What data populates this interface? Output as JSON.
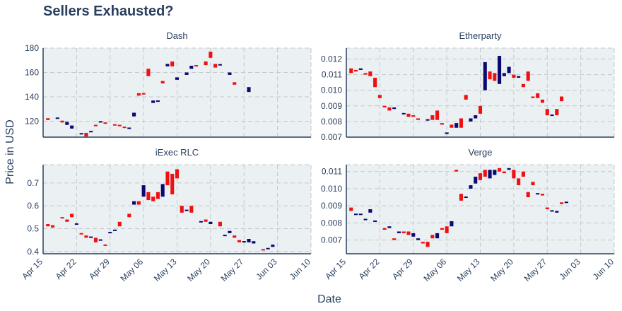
{
  "chart_data": {
    "type": "candlestick",
    "title": "Sellers Exhausted?",
    "xlabel": "Date",
    "ylabel": "Price in USD",
    "colors": {
      "up": "#0a0a73",
      "down": "#ee1111"
    },
    "xlim": [
      "2018-04-15",
      "2018-06-10"
    ],
    "xticks": [
      "2018-04-15",
      "2018-04-22",
      "2018-04-29",
      "2018-05-06",
      "2018-05-13",
      "2018-05-20",
      "2018-05-27",
      "2018-06-03",
      "2018-06-10"
    ],
    "xtick_labels": [
      "Apr 15",
      "Apr 22",
      "Apr 29",
      "May 06",
      "May 13",
      "May 20",
      "May 27",
      "Jun 03",
      "Jun 10"
    ],
    "start_date": "2018-04-16",
    "panels": [
      {
        "name": "Dash",
        "ylim": [
          107,
          180
        ],
        "yticks": [
          120,
          140,
          160,
          180
        ],
        "ytick_labels": [
          "120",
          "140",
          "160",
          "180"
        ],
        "closes_start": 121,
        "candles": [
          [
            122.5,
            121.0
          ],
          [
            null,
            null
          ],
          [
            122.0,
            123.0
          ],
          [
            120.5,
            119.0
          ],
          [
            117.0,
            119.5
          ],
          [
            114.0,
            116.5
          ],
          [
            null,
            null
          ],
          [
            109.5,
            110.0
          ],
          [
            110.5,
            107.5
          ],
          [
            111.0,
            112.0
          ],
          [
            117.0,
            116.0
          ],
          [
            119.0,
            120.0
          ],
          [
            119.0,
            118.0
          ],
          [
            null,
            null
          ],
          [
            117.5,
            116.5
          ],
          [
            117.0,
            116.0
          ],
          [
            115.5,
            114.5
          ],
          [
            114.0,
            114.5
          ],
          [
            124.0,
            127.0
          ],
          [
            143.0,
            141.0
          ],
          [
            143.0,
            142.0
          ],
          [
            163.0,
            157.0
          ],
          [
            135.0,
            137.0
          ],
          [
            136.0,
            137.0
          ],
          [
            153.0,
            151.0
          ],
          [
            165.0,
            167.0
          ],
          [
            169.0,
            165.0
          ],
          [
            154.0,
            156.0
          ],
          [
            null,
            null
          ],
          [
            158.0,
            160.0
          ],
          [
            163.0,
            165.5
          ],
          [
            166.0,
            165.0
          ],
          [
            null,
            null
          ],
          [
            169.0,
            166.0
          ],
          [
            177.0,
            172.0
          ],
          [
            167.0,
            164.0
          ],
          [
            166.0,
            166.5
          ],
          [
            null,
            null
          ],
          [
            158.0,
            160.0
          ],
          [
            152.0,
            150.0
          ],
          [
            null,
            null
          ],
          [
            null,
            null
          ],
          [
            144.0,
            148.0
          ]
        ]
      },
      {
        "name": "Etherparty",
        "ylim": [
          0.007,
          0.0127
        ],
        "yticks": [
          0.007,
          0.008,
          0.009,
          0.01,
          0.011,
          0.012
        ],
        "ytick_labels": [
          "0.007",
          "0.008",
          "0.009",
          "0.010",
          "0.011",
          "0.012"
        ],
        "candles": [
          [
            0.0114,
            0.0111
          ],
          [
            0.0113,
            0.0112
          ],
          [
            0.0113,
            0.0114
          ],
          [
            0.0111,
            0.011
          ],
          [
            0.0112,
            0.0109
          ],
          [
            0.0108,
            0.0102
          ],
          [
            0.0097,
            0.0095
          ],
          [
            0.009,
            0.0089
          ],
          [
            0.0089,
            0.0087
          ],
          [
            0.0088,
            0.0089
          ],
          [
            null,
            null
          ],
          [
            0.0085,
            0.0085
          ],
          [
            0.0085,
            0.0083
          ],
          [
            0.0084,
            0.0083
          ],
          [
            0.0082,
            0.0081
          ],
          [
            null,
            null
          ],
          [
            0.0081,
            0.0081
          ],
          [
            0.0084,
            0.0081
          ],
          [
            0.0087,
            0.0081
          ],
          [
            0.0079,
            0.0078
          ],
          [
            0.0072,
            0.0073
          ],
          [
            0.0078,
            0.0076
          ],
          [
            0.0076,
            0.0079
          ],
          [
            0.0082,
            0.0076
          ],
          [
            0.0097,
            0.0094
          ],
          [
            0.008,
            0.0082
          ],
          [
            0.0082,
            0.0084
          ],
          [
            0.009,
            0.0085
          ],
          [
            0.01,
            0.0118
          ],
          [
            0.0112,
            0.0107
          ],
          [
            0.0111,
            0.0106
          ],
          [
            0.0104,
            0.0122
          ],
          [
            0.0109,
            0.0111
          ],
          [
            0.0111,
            0.0115
          ],
          [
            0.011,
            0.0108
          ],
          [
            0.0108,
            0.0109
          ],
          [
            0.0104,
            0.0102
          ],
          [
            0.0112,
            0.0106
          ],
          [
            0.0096,
            0.0095
          ],
          [
            0.0098,
            0.0095
          ],
          [
            0.0094,
            0.0092
          ],
          [
            0.0088,
            0.0084
          ],
          [
            0.0084,
            0.0084
          ],
          [
            0.0088,
            0.0084
          ],
          [
            0.0096,
            0.0093
          ]
        ]
      },
      {
        "name": "iExec RLC",
        "ylim": [
          0.39,
          0.78
        ],
        "yticks": [
          0.4,
          0.5,
          0.6,
          0.7
        ],
        "ytick_labels": [
          "0.4",
          "0.5",
          "0.6",
          "0.7"
        ],
        "candles": [
          [
            0.52,
            0.51
          ],
          [
            0.515,
            0.505
          ],
          [
            null,
            null
          ],
          [
            0.55,
            0.545
          ],
          [
            0.54,
            0.53
          ],
          [
            0.565,
            0.55
          ],
          [
            0.52,
            0.52
          ],
          [
            0.48,
            0.475
          ],
          [
            0.47,
            0.46
          ],
          [
            0.46,
            0.465
          ],
          [
            0.46,
            0.44
          ],
          [
            0.45,
            0.45
          ],
          [
            0.43,
            0.425
          ],
          [
            0.48,
            0.485
          ],
          [
            0.49,
            0.495
          ],
          [
            0.53,
            0.51
          ],
          [
            null,
            null
          ],
          [
            0.565,
            0.55
          ],
          [
            0.605,
            0.62
          ],
          [
            0.62,
            0.605
          ],
          [
            0.64,
            0.69
          ],
          [
            0.66,
            0.625
          ],
          [
            0.64,
            0.62
          ],
          [
            0.66,
            0.63
          ],
          [
            0.64,
            0.695
          ],
          [
            0.75,
            0.69
          ],
          [
            0.74,
            0.65
          ],
          [
            0.76,
            0.72
          ],
          [
            0.6,
            0.57
          ],
          [
            0.58,
            0.58
          ],
          [
            0.6,
            0.57
          ],
          [
            null,
            null
          ],
          [
            0.53,
            0.53
          ],
          [
            0.54,
            0.53
          ],
          [
            0.52,
            0.53
          ],
          [
            null,
            null
          ],
          [
            0.53,
            0.51
          ],
          [
            0.47,
            0.47
          ],
          [
            0.48,
            0.49
          ],
          [
            0.47,
            0.46
          ],
          [
            0.45,
            0.44
          ],
          [
            0.44,
            0.445
          ],
          [
            0.44,
            0.455
          ],
          [
            0.435,
            0.445
          ],
          [
            null,
            null
          ],
          [
            0.41,
            0.405
          ],
          [
            0.41,
            0.415
          ],
          [
            0.42,
            0.43
          ]
        ]
      },
      {
        "name": "Verge",
        "ylim": [
          0.0062,
          0.0114
        ],
        "yticks": [
          0.007,
          0.008,
          0.009,
          0.01,
          0.011
        ],
        "ytick_labels": [
          "0.007",
          "0.008",
          "0.009",
          "0.010",
          "0.011"
        ],
        "candles": [
          [
            0.0089,
            0.0087
          ],
          [
            0.0085,
            0.0085
          ],
          [
            0.0085,
            0.0085
          ],
          [
            0.0082,
            0.0082
          ],
          [
            0.0086,
            0.0088
          ],
          [
            0.0081,
            0.0081
          ],
          [
            null,
            null
          ],
          [
            0.0077,
            0.0076
          ],
          [
            0.0077,
            0.0078
          ],
          [
            0.0071,
            0.007
          ],
          [
            0.0074,
            0.0075
          ],
          [
            0.0075,
            0.0074
          ],
          [
            0.0075,
            0.0073
          ],
          [
            0.0072,
            0.0074
          ],
          [
            0.007,
            0.0071
          ],
          [
            0.0069,
            0.0068
          ],
          [
            0.0069,
            0.0066
          ],
          [
            0.0073,
            0.0071
          ],
          [
            0.0071,
            0.0074
          ],
          [
            0.0077,
            0.0076
          ],
          [
            0.0078,
            0.0074
          ],
          [
            0.0078,
            0.0081
          ],
          [
            0.0111,
            0.011
          ],
          [
            0.0097,
            0.0093
          ],
          [
            0.0095,
            0.0095
          ],
          [
            0.01,
            0.0102
          ],
          [
            0.0103,
            0.0107
          ],
          [
            0.0109,
            0.0105
          ],
          [
            0.0111,
            0.0107
          ],
          [
            0.0106,
            0.0111
          ],
          [
            0.0108,
            0.0111
          ],
          [
            0.0112,
            0.011
          ],
          [
            0.011,
            0.0109
          ],
          [
            0.0111,
            0.0112
          ],
          [
            0.0111,
            0.0106
          ],
          [
            0.0106,
            0.0102
          ],
          [
            0.011,
            0.0107
          ],
          [
            0.0098,
            0.0095
          ],
          [
            0.0104,
            0.0102
          ],
          [
            0.0097,
            0.0097
          ],
          [
            0.0097,
            0.0096
          ],
          [
            0.0089,
            0.0088
          ],
          [
            0.0087,
            0.0087
          ],
          [
            0.0086,
            0.0087
          ],
          [
            0.0092,
            0.0091
          ],
          [
            0.0092,
            0.0092
          ]
        ]
      }
    ]
  }
}
